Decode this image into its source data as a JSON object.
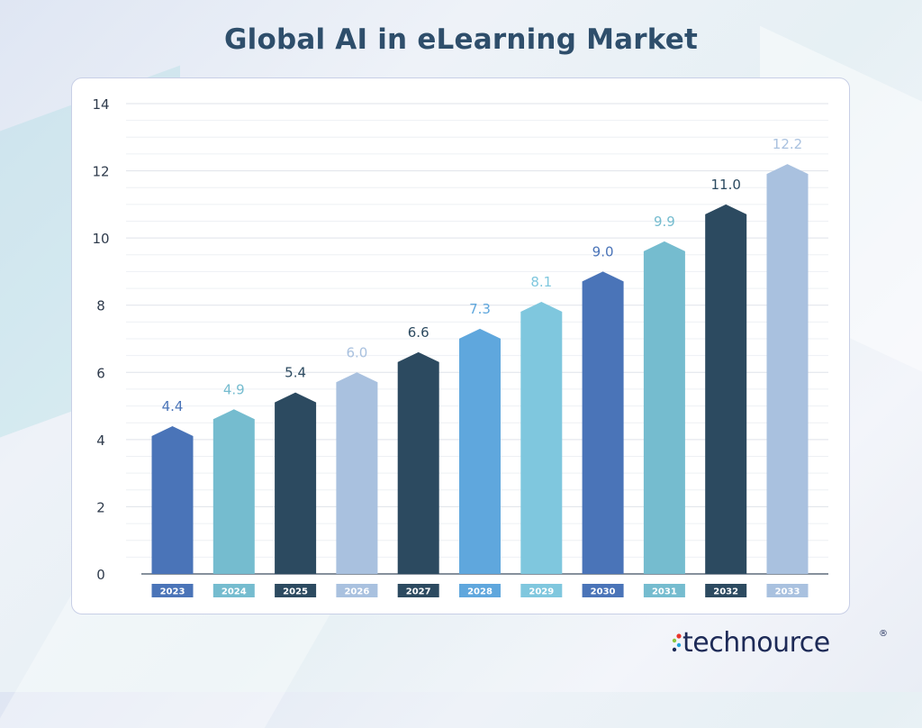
{
  "title": "Global AI in eLearning Market",
  "brand": {
    "name": "technource",
    "registered": "®",
    "dot_colors": [
      "#e8362b",
      "#8cc63f",
      "#1fa3dc",
      "#1d2a57"
    ]
  },
  "chart_data": {
    "type": "bar",
    "categories": [
      "2023",
      "2024",
      "2025",
      "2026",
      "2027",
      "2028",
      "2029",
      "2030",
      "2031",
      "2032",
      "2033"
    ],
    "values": [
      4.4,
      4.9,
      5.4,
      6.0,
      6.6,
      7.3,
      8.1,
      9.0,
      9.9,
      11.0,
      12.2
    ],
    "value_labels": [
      "4.4",
      "4.9",
      "5.4",
      "6.0",
      "6.6",
      "7.3",
      "8.1",
      "9.0",
      "9.9",
      "11.0",
      "12.2"
    ],
    "ylim": [
      0,
      14
    ],
    "yticks": [
      0,
      2,
      4,
      6,
      8,
      10,
      12,
      14
    ],
    "grid": true,
    "xlabel": "",
    "ylabel": "",
    "bar_colors": [
      "#4a74b8",
      "#75bccf",
      "#2c4a60",
      "#a9c1df",
      "#2c4a60",
      "#5fa7dd",
      "#7fc7de",
      "#4a74b8",
      "#75bccf",
      "#2c4a60",
      "#a9c1df"
    ],
    "label_colors": [
      "#4a74b8",
      "#75bccf",
      "#2c4a60",
      "#a9c1df",
      "#2c4a60",
      "#5fa7dd",
      "#7fc7de",
      "#4a74b8",
      "#75bccf",
      "#2c4a60",
      "#a9c1df"
    ]
  }
}
